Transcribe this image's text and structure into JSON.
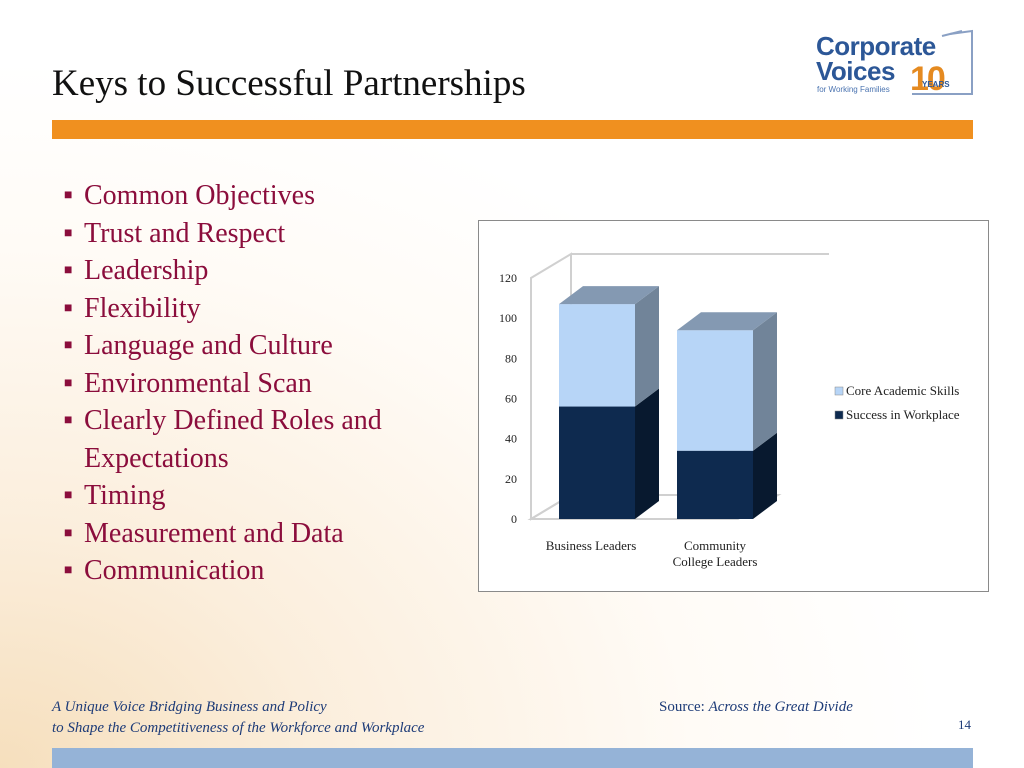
{
  "slide": {
    "title": "Keys to Successful Partnerships",
    "page_number": "14"
  },
  "logo": {
    "line1": "Corporate",
    "line2": "Voices",
    "tagline": "for Working Families",
    "ten": "10",
    "years": "YEARS"
  },
  "bullets": [
    "Common Objectives",
    "Trust and Respect",
    "Leadership",
    "Flexibility",
    "Language and Culture",
    "Environmental Scan",
    "Clearly Defined Roles and Expectations",
    "Timing",
    "Measurement and Data",
    "Communication"
  ],
  "bullet_marker": "■",
  "footer": {
    "line1": "A Unique Voice Bridging Business and Policy",
    "line2": "to Shape the Competitiveness of the Workforce and Workplace",
    "source_label": "Source: ",
    "source_title": "Across the Great Divide"
  },
  "colors": {
    "accent_orange": "#f0901f",
    "bullet_text": "#8b0d3c",
    "footer_text": "#1d3b78",
    "bottom_bar": "#95b3d7"
  },
  "chart_data": {
    "type": "bar",
    "stacked": true,
    "three_d": true,
    "categories": [
      [
        "Business Leaders"
      ],
      [
        "Community",
        "College Leaders"
      ]
    ],
    "series": [
      {
        "name": "Success in Workplace",
        "values": [
          56,
          34
        ],
        "color": "#0e2a4f"
      },
      {
        "name": "Core Academic Skills",
        "values": [
          51,
          60
        ],
        "color": "#b7d5f7"
      }
    ],
    "ylim": [
      0,
      120
    ],
    "yticks": [
      0,
      20,
      40,
      60,
      80,
      100,
      120
    ],
    "legend_order": [
      "Core Academic Skills",
      "Success in Workplace"
    ],
    "legend_position": "right",
    "grid": false
  }
}
